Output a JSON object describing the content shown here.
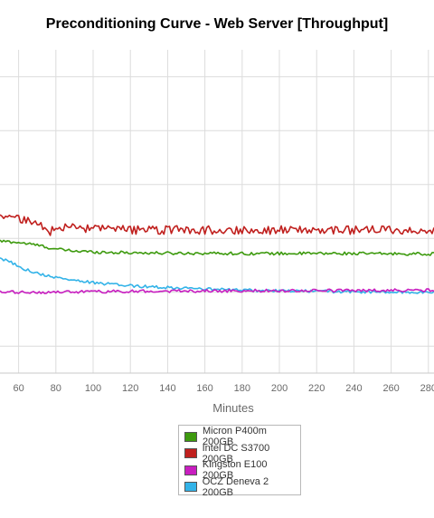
{
  "chart_data": {
    "type": "line",
    "title": "Preconditioning Curve - Web Server [Throughput]",
    "xlabel": "Minutes",
    "ylabel": "",
    "xlim": [
      50,
      283
    ],
    "ylim": [
      12,
      132
    ],
    "x_ticks": [
      60,
      80,
      100,
      120,
      140,
      160,
      180,
      200,
      220,
      240,
      260,
      280
    ],
    "x_tick_labels": [
      "60",
      "80",
      "100",
      "120",
      "140",
      "160",
      "180",
      "200",
      "220",
      "240",
      "260",
      "280"
    ],
    "y_gridlines": [
      22,
      42,
      62,
      82,
      102,
      122
    ],
    "grid": true,
    "legend_position": "bottom-center",
    "series": [
      {
        "name": "Micron P400m 200GB",
        "color": "#3d9a0e",
        "x": [
          50,
          60,
          70,
          80,
          90,
          100,
          110,
          120,
          140,
          160,
          180,
          200,
          220,
          240,
          260,
          283
        ],
        "values": [
          61,
          60.5,
          59.5,
          58,
          57.3,
          57,
          56.8,
          56.7,
          56.5,
          56.5,
          56.4,
          56.4,
          56.4,
          56.4,
          56.3,
          56.2
        ],
        "noise": 0.55
      },
      {
        "name": "Intel DC S3700 200GB",
        "color": "#c0201e",
        "x": [
          50,
          58,
          66,
          73,
          77,
          80,
          85,
          90,
          100,
          120,
          140,
          160,
          180,
          200,
          220,
          240,
          260,
          283
        ],
        "values": [
          71,
          69.5,
          68,
          66.8,
          64,
          67,
          66.3,
          65.8,
          65.4,
          65.1,
          65.1,
          65.1,
          65.1,
          65.1,
          65.1,
          65.1,
          65.1,
          65
        ],
        "noise": 1.6
      },
      {
        "name": "Kingston E100 200GB",
        "color": "#c81ec0",
        "x": [
          50,
          80,
          120,
          160,
          200,
          240,
          283
        ],
        "values": [
          42,
          42,
          42.4,
          42.5,
          42.6,
          42.7,
          42.8
        ],
        "noise": 0.55
      },
      {
        "name": "OCZ Deneva 2 200GB",
        "color": "#33b3e8",
        "x": [
          50,
          56,
          62,
          70,
          80,
          90,
          100,
          120,
          140,
          160,
          180,
          200,
          220,
          240,
          260,
          283
        ],
        "values": [
          54.7,
          53,
          51,
          49,
          47.5,
          46.5,
          45.5,
          44.4,
          43.8,
          43.2,
          42.8,
          42.5,
          42.4,
          42.2,
          42,
          42
        ],
        "noise": 0.55
      }
    ]
  }
}
